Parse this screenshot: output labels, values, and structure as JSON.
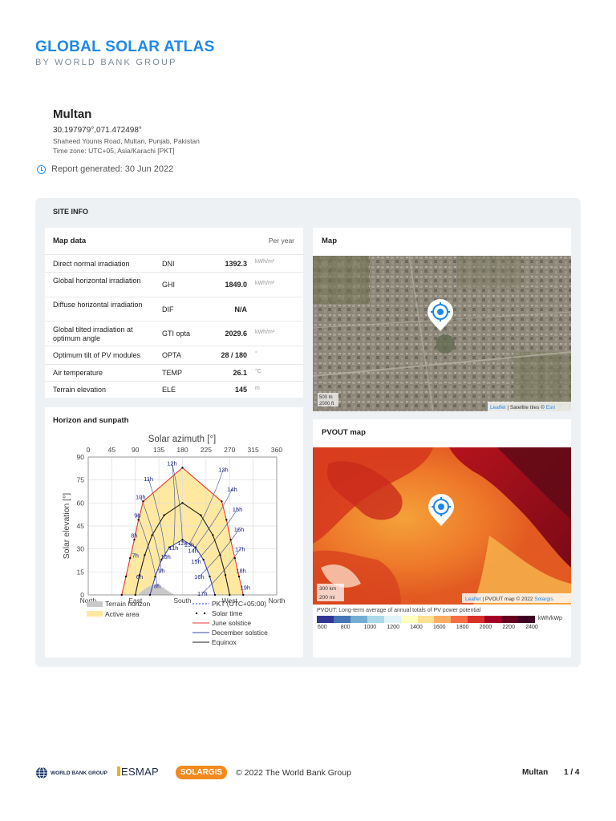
{
  "brand": {
    "title": "GLOBAL SOLAR ATLAS",
    "subtitle": "BY WORLD BANK GROUP"
  },
  "location": {
    "name": "Multan",
    "coords": "30.197979°,071.472498°",
    "address": "Shaheed Younis Road, Multan, Punjab, Pakistan",
    "timezone": "Time zone: UTC+05, Asia/Karachi [PKT]"
  },
  "report": {
    "label": "Report generated: 30 Jun 2022"
  },
  "site_info": {
    "label": "SITE INFO"
  },
  "map_data": {
    "title": "Map data",
    "per_year": "Per year",
    "rows": [
      {
        "label": "Direct normal irradiation",
        "abbr": "DNI",
        "value": "1392.3",
        "unit": "kWh/m²"
      },
      {
        "label": "Global horizontal irradiation",
        "abbr": "GHI",
        "value": "1849.0",
        "unit": "kWh/m²"
      },
      {
        "label": "Diffuse horizontal irradiation",
        "abbr": "DIF",
        "value": "N/A",
        "unit": ""
      },
      {
        "label": "Global tilted irradiation at optimum angle",
        "abbr": "GTI opta",
        "value": "2029.6",
        "unit": "kWh/m²"
      },
      {
        "label": "Optimum tilt of PV modules",
        "abbr": "OPTA",
        "value": "28 / 180",
        "unit": "°"
      },
      {
        "label": "Air temperature",
        "abbr": "TEMP",
        "value": "26.1",
        "unit": "°C"
      },
      {
        "label": "Terrain elevation",
        "abbr": "ELE",
        "value": "145",
        "unit": "m"
      }
    ]
  },
  "map": {
    "title": "Map",
    "scale_m": "500 m",
    "scale_ft": "2000 ft",
    "attribution_leaflet": "Leaflet",
    "attribution_rest": " | Satellite tiles © ",
    "attribution_esri": "Esri"
  },
  "horizon": {
    "title": "Horizon and sunpath",
    "chart_data": {
      "type": "line",
      "title": "Solar azimuth [°]",
      "ylabel": "Solar elevation [°]",
      "azimuth_ticks": [
        "0",
        "45",
        "90",
        "135",
        "180",
        "225",
        "270",
        "315",
        "360"
      ],
      "elevation_ticks": [
        "0",
        "15",
        "30",
        "45",
        "60",
        "75",
        "90"
      ],
      "direction_labels": [
        "North",
        "East",
        "South",
        "West",
        "North"
      ],
      "xlim": [
        0,
        360
      ],
      "ylim": [
        0,
        90
      ],
      "series": [
        {
          "name": "June solstice",
          "color": "#e53935",
          "x": [
            64,
            72,
            80,
            88,
            96,
            105,
            180,
            255,
            264,
            272,
            280,
            288,
            296
          ],
          "y": [
            0,
            12,
            24,
            36,
            49,
            61,
            83,
            61,
            49,
            36,
            24,
            12,
            0
          ]
        },
        {
          "name": "December solstice",
          "color": "#3949ab",
          "x": [
            118,
            128,
            140,
            155,
            180,
            205,
            220,
            232,
            242
          ],
          "y": [
            0,
            12,
            23,
            31,
            36,
            31,
            23,
            12,
            0
          ]
        },
        {
          "name": "Equinox",
          "color": "#222222",
          "x": [
            90,
            98,
            108,
            122,
            145,
            180,
            215,
            238,
            252,
            262,
            270
          ],
          "y": [
            0,
            13,
            26,
            39,
            52,
            60,
            52,
            39,
            26,
            13,
            0
          ]
        }
      ],
      "hour_labels": [
        {
          "t": "6h",
          "x": 98,
          "y": 12
        },
        {
          "t": "7h",
          "x": 90,
          "y": 26
        },
        {
          "t": "8h",
          "x": 88,
          "y": 39
        },
        {
          "t": "9h",
          "x": 94,
          "y": 52
        },
        {
          "t": "10h",
          "x": 100,
          "y": 64
        },
        {
          "t": "11h",
          "x": 115,
          "y": 76
        },
        {
          "t": "12h",
          "x": 160,
          "y": 86
        },
        {
          "t": "13h",
          "x": 258,
          "y": 82
        },
        {
          "t": "14h",
          "x": 275,
          "y": 69
        },
        {
          "t": "15h",
          "x": 285,
          "y": 56
        },
        {
          "t": "16h",
          "x": 288,
          "y": 43
        },
        {
          "t": "17h",
          "x": 290,
          "y": 30
        },
        {
          "t": "18h",
          "x": 292,
          "y": 16
        },
        {
          "t": "19h",
          "x": 300,
          "y": 5
        },
        {
          "t": "8h",
          "x": 132,
          "y": 6
        },
        {
          "t": "9h",
          "x": 140,
          "y": 16
        },
        {
          "t": "10h",
          "x": 148,
          "y": 25
        },
        {
          "t": "11h",
          "x": 163,
          "y": 31
        },
        {
          "t": "12h",
          "x": 180,
          "y": 34
        },
        {
          "t": "13h",
          "x": 193,
          "y": 33
        },
        {
          "t": "14h",
          "x": 200,
          "y": 29
        },
        {
          "t": "15h",
          "x": 206,
          "y": 22
        },
        {
          "t": "16h",
          "x": 212,
          "y": 12
        },
        {
          "t": "17h",
          "x": 218,
          "y": 1
        }
      ],
      "legend": {
        "terrain": "Terrain horizon",
        "active": "Active area",
        "pkt": "PKT (UTC+05:00)",
        "solar_time": "Solar time",
        "june": "June solstice",
        "december": "December solstice",
        "equinox": "Equinox"
      }
    }
  },
  "pvout": {
    "title": "PVOUT map",
    "scale_km": "300 km",
    "scale_mi": "200 mi",
    "attribution_leaflet": "Leaflet",
    "attribution_rest": " | PVOUT map © 2022 ",
    "attribution_solargis": "Solargis",
    "legend_text": "PVOUT: Long-term average of annual totals of PV power potential",
    "unit": "kWh/kWp",
    "ticks": [
      "600",
      "800",
      "1000",
      "1200",
      "1400",
      "1600",
      "1800",
      "2000",
      "2200",
      "2400"
    ],
    "colors": [
      "#313695",
      "#4575b4",
      "#74add1",
      "#abd9e9",
      "#e0f3f8",
      "#ffffbf",
      "#fee090",
      "#fdae61",
      "#f46d43",
      "#d73027",
      "#a50026",
      "#67001f",
      "#3d0020"
    ]
  },
  "footer": {
    "wbg": "WORLD BANK GROUP",
    "esmap": "ESMAP",
    "solargis": "SOLARGIS",
    "copyright": "© 2022 The World Bank Group",
    "location": "Multan",
    "page": "1 / 4"
  }
}
